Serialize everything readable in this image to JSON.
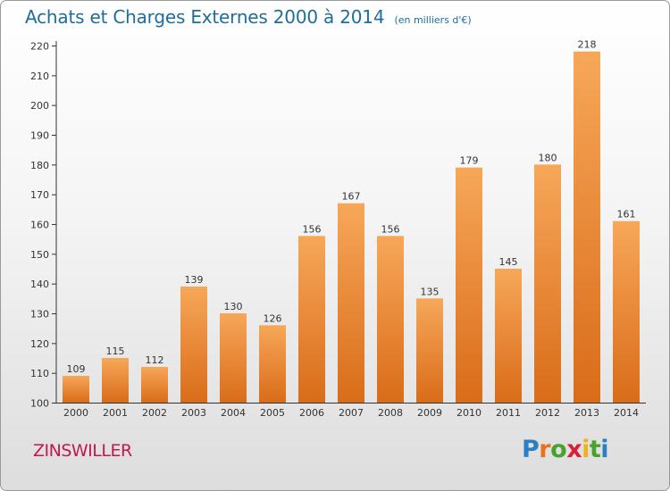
{
  "chart": {
    "title": "Achats et Charges Externes 2000 à 2014",
    "subtitle": "(en milliers d'€)",
    "location": "ZINSWILLER"
  },
  "brand": {
    "letters": [
      {
        "text": "P",
        "color": "#2d7fc4"
      },
      {
        "text": "r",
        "color": "#e8731c"
      },
      {
        "text": "o",
        "color": "#48a22b"
      },
      {
        "text": "x",
        "color": "#d81f3c"
      },
      {
        "text": "i",
        "color": "#f0b21b"
      },
      {
        "text": "t",
        "color": "#48a22b"
      },
      {
        "text": "i",
        "color": "#2d7fc4"
      }
    ]
  },
  "colors": {
    "bar_light": "#f7a759",
    "bar_dark": "#d96c19",
    "axis": "#333333",
    "grid": "#cccccc",
    "title": "#1e6e9a"
  },
  "chart_data": {
    "type": "bar",
    "title": "Achats et Charges Externes 2000 à 2014",
    "subtitle": "(en milliers d'€)",
    "xlabel": "",
    "ylabel": "",
    "ylim": [
      100,
      220
    ],
    "yticks": [
      100,
      110,
      120,
      130,
      140,
      150,
      160,
      170,
      180,
      190,
      200,
      210,
      220
    ],
    "grid": false,
    "categories": [
      "2000",
      "2001",
      "2002",
      "2003",
      "2004",
      "2005",
      "2006",
      "2007",
      "2008",
      "2009",
      "2010",
      "2011",
      "2012",
      "2013",
      "2014"
    ],
    "values": [
      109,
      115,
      112,
      139,
      130,
      126,
      156,
      167,
      156,
      135,
      179,
      145,
      180,
      218,
      161
    ],
    "data_labels": true
  }
}
